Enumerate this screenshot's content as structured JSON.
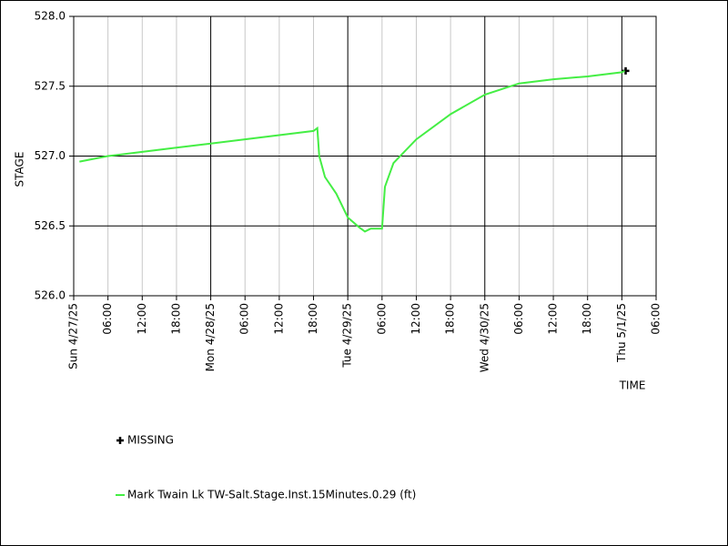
{
  "chart_data": {
    "type": "line",
    "y_label": "STAGE",
    "x_label": "TIME",
    "xlim": [
      "2025-04-27T00:00",
      "2025-05-01T06:00"
    ],
    "xticks": [
      {
        "value": "2025-04-27T00:00",
        "label": "Sun 4/27/25"
      },
      {
        "value": "2025-04-28T00:00",
        "label": "Mon 4/28/25"
      },
      {
        "value": "2025-04-29T00:00",
        "label": "Tue 4/29/25"
      },
      {
        "value": "2025-04-30T00:00",
        "label": "Wed 4/30/25"
      },
      {
        "value": "2025-05-01T00:00",
        "label": "Thu 5/1/25"
      }
    ],
    "minor_xticks": [
      {
        "value": "2025-04-27T06:00",
        "label": "06:00"
      },
      {
        "value": "2025-04-27T12:00",
        "label": "12:00"
      },
      {
        "value": "2025-04-27T18:00",
        "label": "18:00"
      },
      {
        "value": "2025-04-28T06:00",
        "label": "06:00"
      },
      {
        "value": "2025-04-28T12:00",
        "label": "12:00"
      },
      {
        "value": "2025-04-28T18:00",
        "label": "18:00"
      },
      {
        "value": "2025-04-29T06:00",
        "label": "06:00"
      },
      {
        "value": "2025-04-29T12:00",
        "label": "12:00"
      },
      {
        "value": "2025-04-29T18:00",
        "label": "18:00"
      },
      {
        "value": "2025-04-30T06:00",
        "label": "06:00"
      },
      {
        "value": "2025-04-30T12:00",
        "label": "12:00"
      },
      {
        "value": "2025-04-30T18:00",
        "label": "18:00"
      },
      {
        "value": "2025-05-01T06:00",
        "label": "06:00"
      }
    ],
    "ylim": [
      526.0,
      528.0
    ],
    "yticks": [
      {
        "value": 526.0,
        "label": "526.0"
      },
      {
        "value": 526.5,
        "label": "526.5"
      },
      {
        "value": 527.0,
        "label": "527.0"
      },
      {
        "value": 527.5,
        "label": "527.5"
      },
      {
        "value": 528.0,
        "label": "528.0"
      }
    ],
    "grid": true,
    "series": [
      {
        "name": "MISSING",
        "color": "#000000",
        "marker": "plus",
        "x": [
          "2025-05-01T00:40"
        ],
        "values": [
          527.61
        ]
      },
      {
        "name": "Mark Twain Lk TW-Salt.Stage.Inst.15Minutes.0.29 (ft)",
        "color": "#44ee44",
        "marker": "line",
        "x": [
          "2025-04-27T01:00",
          "2025-04-27T06:00",
          "2025-04-27T12:00",
          "2025-04-27T18:00",
          "2025-04-28T00:00",
          "2025-04-28T06:00",
          "2025-04-28T12:00",
          "2025-04-28T18:00",
          "2025-04-28T18:40",
          "2025-04-28T19:00",
          "2025-04-28T20:00",
          "2025-04-28T22:00",
          "2025-04-29T00:00",
          "2025-04-29T02:00",
          "2025-04-29T03:00",
          "2025-04-29T04:00",
          "2025-04-29T06:00",
          "2025-04-29T06:30",
          "2025-04-29T08:00",
          "2025-04-29T12:00",
          "2025-04-29T18:00",
          "2025-04-30T00:00",
          "2025-04-30T06:00",
          "2025-04-30T12:00",
          "2025-04-30T18:00",
          "2025-05-01T00:00",
          "2025-05-01T00:30"
        ],
        "values": [
          526.96,
          527.0,
          527.03,
          527.06,
          527.09,
          527.12,
          527.15,
          527.18,
          527.2,
          527.0,
          526.85,
          526.73,
          526.56,
          526.49,
          526.46,
          526.48,
          526.48,
          526.78,
          526.95,
          527.12,
          527.3,
          527.44,
          527.52,
          527.55,
          527.57,
          527.6,
          527.61
        ]
      }
    ]
  }
}
